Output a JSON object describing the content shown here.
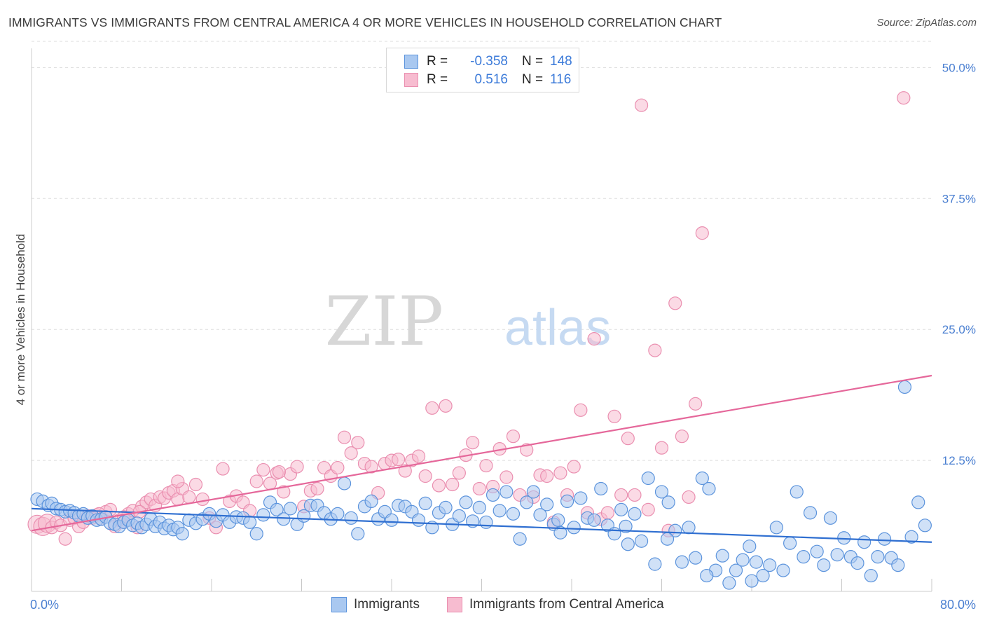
{
  "header": {
    "title": "IMMIGRANTS VS IMMIGRANTS FROM CENTRAL AMERICA 4 OR MORE VEHICLES IN HOUSEHOLD CORRELATION CHART",
    "source": "Source: ZipAtlas.com"
  },
  "watermark": {
    "zip": "ZIP",
    "atlas": "atlas"
  },
  "legend": {
    "rows": [
      {
        "r_label": "R =",
        "r_value": "-0.358",
        "n_label": "N =",
        "n_value": "148"
      },
      {
        "r_label": "R =",
        "r_value": "0.516",
        "n_label": "N =",
        "n_value": "116"
      }
    ]
  },
  "colors": {
    "immigrants_fill": "#a9c8f0",
    "immigrants_stroke": "#5b93dc",
    "immigrants_line": "#2f6fd1",
    "central_fill": "#f7bcd0",
    "central_stroke": "#ea8fb0",
    "central_line": "#e5679a",
    "grid": "#dddddd",
    "tick_label": "#4a7fd1"
  },
  "chart_data": {
    "type": "scatter",
    "title": "IMMIGRANTS VS IMMIGRANTS FROM CENTRAL AMERICA 4 OR MORE VEHICLES IN HOUSEHOLD CORRELATION CHART",
    "xlabel": "",
    "ylabel": "4 or more Vehicles in Household",
    "xlim": [
      0,
      80
    ],
    "ylim": [
      0,
      52.5
    ],
    "x_tick_labels": [
      "0.0%",
      "80.0%"
    ],
    "y_ticks": [
      12.5,
      25.0,
      37.5,
      50.0
    ],
    "y_tick_labels": [
      "12.5%",
      "25.0%",
      "37.5%",
      "50.0%"
    ],
    "grid": true,
    "legend_position": "bottom-center",
    "series": [
      {
        "name": "Immigrants",
        "r": -0.358,
        "n": 148,
        "trend": {
          "x": [
            0,
            80
          ],
          "y": [
            7.9,
            4.7
          ]
        },
        "points": [
          [
            0.5,
            8.8
          ],
          [
            1.0,
            8.6
          ],
          [
            1.5,
            8.2
          ],
          [
            1.8,
            8.4
          ],
          [
            2.2,
            7.9
          ],
          [
            2.6,
            7.8
          ],
          [
            3.0,
            7.6
          ],
          [
            3.4,
            7.7
          ],
          [
            3.8,
            7.5
          ],
          [
            4.2,
            7.2
          ],
          [
            4.6,
            7.4
          ],
          [
            5.0,
            7.0
          ],
          [
            5.4,
            7.2
          ],
          [
            5.8,
            6.8
          ],
          [
            6.2,
            6.9
          ],
          [
            6.6,
            7.1
          ],
          [
            7.0,
            6.5
          ],
          [
            7.4,
            6.4
          ],
          [
            7.8,
            6.2
          ],
          [
            8.2,
            6.6
          ],
          [
            8.6,
            6.8
          ],
          [
            9.0,
            6.3
          ],
          [
            9.4,
            6.5
          ],
          [
            9.8,
            6.1
          ],
          [
            10.2,
            6.4
          ],
          [
            10.6,
            6.9
          ],
          [
            11.0,
            6.2
          ],
          [
            11.4,
            6.6
          ],
          [
            11.8,
            6.0
          ],
          [
            12.2,
            6.3
          ],
          [
            12.6,
            5.9
          ],
          [
            13.0,
            6.1
          ],
          [
            13.4,
            5.5
          ],
          [
            14.0,
            6.8
          ],
          [
            14.6,
            6.5
          ],
          [
            15.2,
            6.9
          ],
          [
            15.8,
            7.4
          ],
          [
            16.4,
            6.7
          ],
          [
            17.0,
            7.3
          ],
          [
            17.6,
            6.6
          ],
          [
            18.2,
            7.1
          ],
          [
            18.8,
            7.0
          ],
          [
            19.4,
            6.6
          ],
          [
            20.0,
            5.5
          ],
          [
            20.6,
            7.3
          ],
          [
            21.2,
            8.5
          ],
          [
            21.8,
            7.8
          ],
          [
            22.4,
            6.9
          ],
          [
            23.0,
            7.9
          ],
          [
            23.6,
            6.4
          ],
          [
            24.2,
            7.2
          ],
          [
            24.8,
            8.2
          ],
          [
            25.4,
            8.2
          ],
          [
            26.0,
            7.5
          ],
          [
            26.6,
            6.9
          ],
          [
            27.2,
            7.4
          ],
          [
            27.8,
            10.3
          ],
          [
            28.4,
            7.0
          ],
          [
            29.0,
            5.5
          ],
          [
            29.6,
            8.1
          ],
          [
            30.2,
            8.6
          ],
          [
            30.8,
            6.9
          ],
          [
            31.4,
            7.6
          ],
          [
            32.0,
            6.8
          ],
          [
            32.6,
            8.2
          ],
          [
            33.2,
            8.1
          ],
          [
            33.8,
            7.6
          ],
          [
            34.4,
            6.8
          ],
          [
            35.0,
            8.4
          ],
          [
            35.6,
            6.1
          ],
          [
            36.2,
            7.5
          ],
          [
            36.8,
            8.0
          ],
          [
            37.4,
            6.4
          ],
          [
            38.0,
            7.2
          ],
          [
            38.6,
            8.5
          ],
          [
            39.2,
            6.7
          ],
          [
            39.8,
            8.0
          ],
          [
            40.4,
            6.6
          ],
          [
            41.0,
            9.2
          ],
          [
            41.6,
            7.7
          ],
          [
            42.2,
            9.5
          ],
          [
            42.8,
            7.4
          ],
          [
            43.4,
            5.0
          ],
          [
            44.0,
            8.5
          ],
          [
            44.6,
            9.5
          ],
          [
            45.2,
            7.3
          ],
          [
            45.8,
            8.3
          ],
          [
            46.4,
            6.4
          ],
          [
            47.0,
            5.6
          ],
          [
            47.6,
            8.6
          ],
          [
            48.2,
            6.1
          ],
          [
            48.8,
            8.9
          ],
          [
            49.4,
            7.0
          ],
          [
            50.0,
            6.8
          ],
          [
            50.6,
            9.8
          ],
          [
            51.2,
            6.3
          ],
          [
            51.8,
            5.5
          ],
          [
            52.4,
            7.8
          ],
          [
            53.0,
            4.5
          ],
          [
            53.6,
            7.4
          ],
          [
            54.2,
            4.8
          ],
          [
            54.8,
            10.8
          ],
          [
            55.4,
            2.6
          ],
          [
            56.0,
            9.5
          ],
          [
            56.6,
            8.5
          ],
          [
            57.2,
            5.8
          ],
          [
            57.8,
            2.8
          ],
          [
            58.4,
            6.1
          ],
          [
            59.0,
            3.2
          ],
          [
            59.6,
            10.8
          ],
          [
            60.2,
            9.8
          ],
          [
            60.8,
            2.0
          ],
          [
            61.4,
            3.4
          ],
          [
            62.0,
            0.8
          ],
          [
            62.6,
            2.0
          ],
          [
            63.2,
            3.0
          ],
          [
            63.8,
            4.3
          ],
          [
            64.4,
            2.8
          ],
          [
            65.0,
            1.5
          ],
          [
            65.6,
            2.5
          ],
          [
            66.2,
            6.1
          ],
          [
            66.8,
            2.0
          ],
          [
            67.4,
            4.6
          ],
          [
            68.0,
            9.5
          ],
          [
            68.6,
            3.3
          ],
          [
            69.2,
            7.5
          ],
          [
            69.8,
            3.8
          ],
          [
            70.4,
            2.5
          ],
          [
            71.0,
            7.0
          ],
          [
            71.6,
            3.5
          ],
          [
            72.2,
            5.1
          ],
          [
            72.8,
            3.3
          ],
          [
            73.4,
            2.7
          ],
          [
            74.0,
            4.7
          ],
          [
            74.6,
            1.5
          ],
          [
            75.2,
            3.3
          ],
          [
            75.8,
            5.0
          ],
          [
            76.4,
            3.2
          ],
          [
            77.0,
            2.5
          ],
          [
            77.6,
            19.5
          ],
          [
            78.2,
            5.2
          ],
          [
            78.8,
            8.5
          ],
          [
            79.4,
            6.3
          ],
          [
            60.0,
            1.5
          ],
          [
            64.0,
            1.0
          ],
          [
            56.5,
            5.0
          ],
          [
            52.8,
            6.2
          ],
          [
            46.8,
            6.8
          ]
        ]
      },
      {
        "name": "Immigrants from Central America",
        "r": 0.516,
        "n": 116,
        "trend": {
          "x": [
            0,
            80
          ],
          "y": [
            5.8,
            20.6
          ]
        },
        "points": [
          [
            0.5,
            6.4
          ],
          [
            1.0,
            6.2
          ],
          [
            1.4,
            6.5
          ],
          [
            1.8,
            6.1
          ],
          [
            2.2,
            6.6
          ],
          [
            2.6,
            6.3
          ],
          [
            3.0,
            5.0
          ],
          [
            3.4,
            6.8
          ],
          [
            3.8,
            7.0
          ],
          [
            4.2,
            6.2
          ],
          [
            4.6,
            6.6
          ],
          [
            5.0,
            7.2
          ],
          [
            5.4,
            7.0
          ],
          [
            5.8,
            7.3
          ],
          [
            6.2,
            6.9
          ],
          [
            6.6,
            7.6
          ],
          [
            7.0,
            7.8
          ],
          [
            7.4,
            6.2
          ],
          [
            7.8,
            6.8
          ],
          [
            8.2,
            6.6
          ],
          [
            8.6,
            7.4
          ],
          [
            9.0,
            7.7
          ],
          [
            9.4,
            6.1
          ],
          [
            9.8,
            8.1
          ],
          [
            10.2,
            8.5
          ],
          [
            10.6,
            8.8
          ],
          [
            11.0,
            8.2
          ],
          [
            11.4,
            9.0
          ],
          [
            11.8,
            8.9
          ],
          [
            12.2,
            9.4
          ],
          [
            12.6,
            9.6
          ],
          [
            13.0,
            8.8
          ],
          [
            13.4,
            9.8
          ],
          [
            14.0,
            9.0
          ],
          [
            14.6,
            10.2
          ],
          [
            15.2,
            8.8
          ],
          [
            15.8,
            7.0
          ],
          [
            16.4,
            6.1
          ],
          [
            17.0,
            11.7
          ],
          [
            17.6,
            8.6
          ],
          [
            18.2,
            9.1
          ],
          [
            18.8,
            8.5
          ],
          [
            19.4,
            7.7
          ],
          [
            20.0,
            10.5
          ],
          [
            20.6,
            11.6
          ],
          [
            21.2,
            10.3
          ],
          [
            21.8,
            11.3
          ],
          [
            22.4,
            9.5
          ],
          [
            23.0,
            11.2
          ],
          [
            23.6,
            11.9
          ],
          [
            24.2,
            8.1
          ],
          [
            24.8,
            9.6
          ],
          [
            25.4,
            9.8
          ],
          [
            26.0,
            11.8
          ],
          [
            26.6,
            11.0
          ],
          [
            27.2,
            11.8
          ],
          [
            27.8,
            14.7
          ],
          [
            28.4,
            13.2
          ],
          [
            29.0,
            14.2
          ],
          [
            29.6,
            12.2
          ],
          [
            30.2,
            11.9
          ],
          [
            30.8,
            9.4
          ],
          [
            31.4,
            12.2
          ],
          [
            32.0,
            12.5
          ],
          [
            32.6,
            12.6
          ],
          [
            33.2,
            11.5
          ],
          [
            33.8,
            12.5
          ],
          [
            34.4,
            12.9
          ],
          [
            35.0,
            11.0
          ],
          [
            35.6,
            17.5
          ],
          [
            36.2,
            10.1
          ],
          [
            36.8,
            17.7
          ],
          [
            37.4,
            10.2
          ],
          [
            38.0,
            11.3
          ],
          [
            38.6,
            13.0
          ],
          [
            39.2,
            14.2
          ],
          [
            39.8,
            9.8
          ],
          [
            40.4,
            12.0
          ],
          [
            41.0,
            10.0
          ],
          [
            41.6,
            13.6
          ],
          [
            42.2,
            10.9
          ],
          [
            42.8,
            14.8
          ],
          [
            43.4,
            9.2
          ],
          [
            44.0,
            13.5
          ],
          [
            44.6,
            9.0
          ],
          [
            45.2,
            11.1
          ],
          [
            45.8,
            11.0
          ],
          [
            46.4,
            6.6
          ],
          [
            47.0,
            11.3
          ],
          [
            47.6,
            9.2
          ],
          [
            48.2,
            11.9
          ],
          [
            48.8,
            17.3
          ],
          [
            49.4,
            7.5
          ],
          [
            50.0,
            24.1
          ],
          [
            50.6,
            6.9
          ],
          [
            51.2,
            7.5
          ],
          [
            51.8,
            16.7
          ],
          [
            52.4,
            9.2
          ],
          [
            53.0,
            14.6
          ],
          [
            53.6,
            9.2
          ],
          [
            54.2,
            46.4
          ],
          [
            54.8,
            7.8
          ],
          [
            55.4,
            23.0
          ],
          [
            56.0,
            13.7
          ],
          [
            56.6,
            5.8
          ],
          [
            57.2,
            27.5
          ],
          [
            57.8,
            14.8
          ],
          [
            58.4,
            9.0
          ],
          [
            59.0,
            17.9
          ],
          [
            59.6,
            34.2
          ],
          [
            77.5,
            47.1
          ],
          [
            13.0,
            10.5
          ],
          [
            9.6,
            7.6
          ],
          [
            8.2,
            7.1
          ],
          [
            6.0,
            7.4
          ],
          [
            22.0,
            11.4
          ]
        ]
      }
    ]
  }
}
